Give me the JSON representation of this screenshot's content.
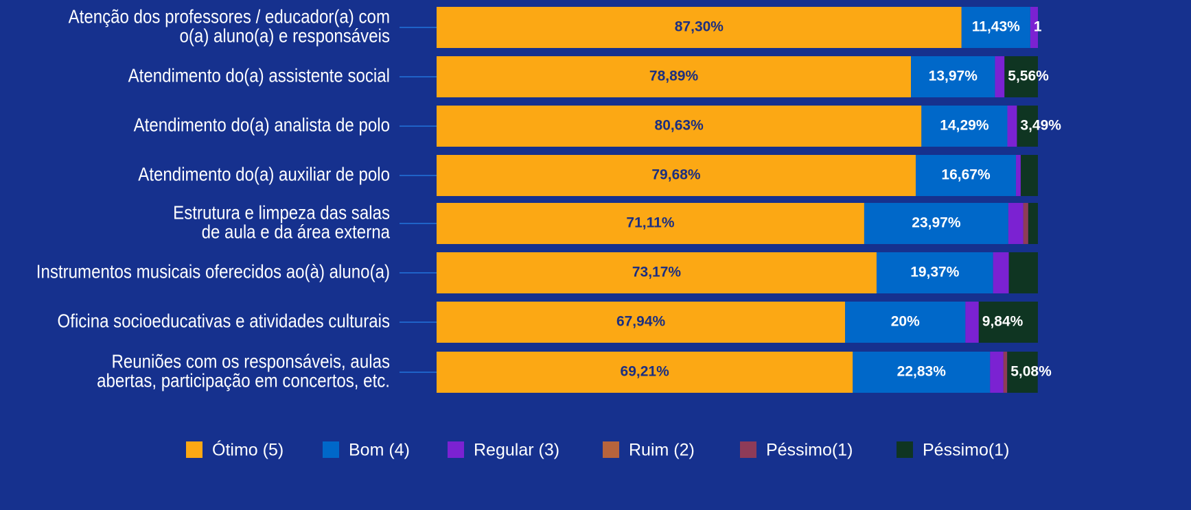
{
  "chart_data": {
    "type": "stacked-bar-horizontal",
    "categories": [
      [
        "Atenção dos professores / educador(a) com",
        "o(a) aluno(a) e responsáveis"
      ],
      [
        "Atendimento do(a) assistente social"
      ],
      [
        "Atendimento do(a) analista de polo"
      ],
      [
        "Atendimento do(a) auxiliar de polo"
      ],
      [
        "Estrutura e limpeza das salas",
        "de aula e da área externa"
      ],
      [
        "Instrumentos musicais oferecidos ao(à) aluno(a)"
      ],
      [
        "Oficina socioeducativas e atividades culturais"
      ],
      [
        "Reuniões com os responsáveis, aulas",
        "abertas, participação em concertos, etc."
      ]
    ],
    "series": [
      {
        "name": "Ótimo (5)",
        "color": "#fca814",
        "values": [
          87.3,
          78.89,
          80.63,
          79.68,
          71.11,
          73.17,
          67.94,
          69.21
        ],
        "value_labels": [
          "87,30%",
          "78,89%",
          "80,63%",
          "79,68%",
          "71,11%",
          "73,17%",
          "67,94%",
          "69,21%"
        ]
      },
      {
        "name": "Bom (4)",
        "color": "#0068c9",
        "values": [
          11.43,
          13.97,
          14.29,
          16.67,
          23.97,
          19.37,
          20,
          22.83
        ],
        "value_labels": [
          "11,43%",
          "13,97%",
          "14,29%",
          "16,67%",
          "23,97%",
          "19,37%",
          "20%",
          "22,83%"
        ]
      },
      {
        "name": "Regular (3)",
        "color": "#7b22d2",
        "values": [
          1.27,
          1.58,
          1.59,
          0.79,
          2.48,
          2.62,
          2.22,
          2.22
        ],
        "value_labels": [
          "1",
          null,
          null,
          null,
          null,
          null,
          null,
          null
        ]
      },
      {
        "name": "Ruim (2)",
        "color": "#b8643c",
        "values": [
          0,
          0,
          0,
          0,
          0,
          0,
          0,
          0
        ]
      },
      {
        "name": "Péssimo(1)",
        "color": "#8e3b58",
        "values": [
          0,
          0,
          0,
          0,
          0.83,
          0,
          0,
          0.63
        ]
      },
      {
        "name": "Péssimo(1)",
        "color": "#0f3522",
        "values": [
          0,
          5.56,
          3.49,
          2.86,
          1.61,
          4.84,
          9.84,
          5.08
        ],
        "value_labels": [
          null,
          "5,56%",
          "3,49%",
          null,
          null,
          null,
          "9,84%",
          "5,08%"
        ]
      }
    ],
    "xlim": [
      0,
      100
    ]
  }
}
